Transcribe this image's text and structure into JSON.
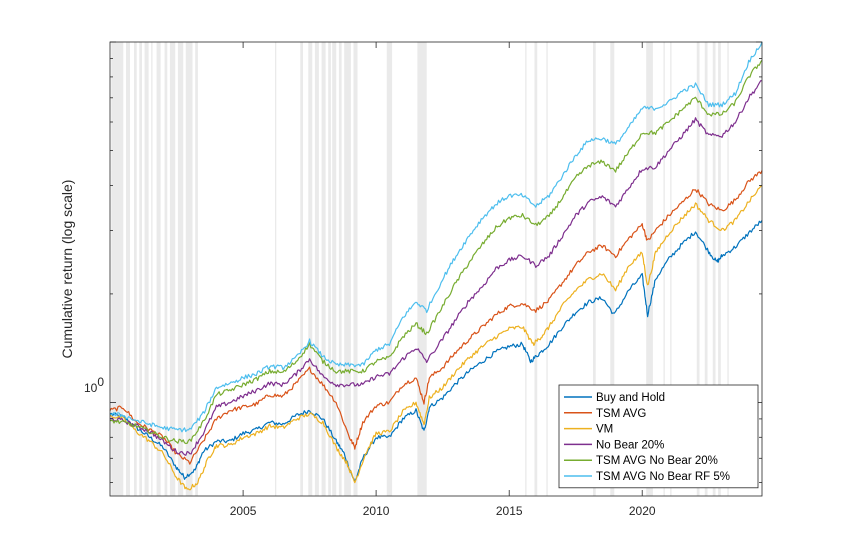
{
  "chart_data": {
    "type": "line",
    "title": "",
    "xlabel": "",
    "ylabel": "Cumulative return (log scale)",
    "y_scale": "log",
    "xlim": [
      2000.0,
      2024.5
    ],
    "ylim": [
      0.55,
      10.0
    ],
    "x_ticks": [
      2005,
      2010,
      2015,
      2020
    ],
    "y_tick_label": {
      "base": "10",
      "exponent": "0"
    },
    "grid": false,
    "legend_position": "bottom-right",
    "shaded_periods_color": "#d9d9d9",
    "shaded_periods": [
      [
        2000.05,
        2000.5
      ],
      [
        2000.6,
        2000.75
      ],
      [
        2000.9,
        2001.0
      ],
      [
        2001.1,
        2001.2
      ],
      [
        2001.3,
        2001.45
      ],
      [
        2001.55,
        2001.6
      ],
      [
        2001.75,
        2001.9
      ],
      [
        2002.05,
        2002.15
      ],
      [
        2002.25,
        2002.45
      ],
      [
        2002.55,
        2002.75
      ],
      [
        2002.85,
        2003.1
      ],
      [
        2003.2,
        2003.3
      ],
      [
        2006.2,
        2006.25
      ],
      [
        2007.15,
        2007.25
      ],
      [
        2007.45,
        2007.6
      ],
      [
        2007.7,
        2007.85
      ],
      [
        2007.95,
        2008.1
      ],
      [
        2008.2,
        2008.3
      ],
      [
        2008.35,
        2008.5
      ],
      [
        2008.6,
        2008.7
      ],
      [
        2008.8,
        2009.05
      ],
      [
        2009.15,
        2009.3
      ],
      [
        2010.4,
        2010.6
      ],
      [
        2011.55,
        2011.9
      ],
      [
        2015.6,
        2015.65
      ],
      [
        2015.95,
        2016.05
      ],
      [
        2016.4,
        2016.45
      ],
      [
        2018.15,
        2018.25
      ],
      [
        2018.8,
        2018.95
      ],
      [
        2020.15,
        2020.4
      ],
      [
        2020.8,
        2020.85
      ],
      [
        2021.05,
        2021.1
      ],
      [
        2022.05,
        2022.15
      ],
      [
        2022.35,
        2022.45
      ],
      [
        2022.65,
        2022.75
      ],
      [
        2022.85,
        2022.95
      ],
      [
        2023.2,
        2023.25
      ]
    ],
    "series": [
      {
        "name": "Buy and Hold",
        "color": "#0072BD",
        "x": [
          2000.0,
          2000.5,
          2001.0,
          2001.5,
          2002.0,
          2002.5,
          2002.8,
          2003.2,
          2003.5,
          2004.0,
          2004.5,
          2005.0,
          2005.5,
          2006.0,
          2006.5,
          2007.0,
          2007.5,
          2008.0,
          2008.5,
          2008.8,
          2009.2,
          2009.5,
          2010.0,
          2010.5,
          2011.0,
          2011.5,
          2011.8,
          2012.0,
          2012.5,
          2013.0,
          2013.5,
          2014.0,
          2014.5,
          2015.0,
          2015.5,
          2015.8,
          2016.1,
          2016.5,
          2017.0,
          2017.5,
          2018.0,
          2018.5,
          2018.95,
          2019.5,
          2020.0,
          2020.2,
          2020.5,
          2021.0,
          2021.5,
          2022.0,
          2022.5,
          2022.8,
          2023.0,
          2023.5,
          2024.0,
          2024.5
        ],
        "y": [
          0.93,
          0.91,
          0.85,
          0.8,
          0.75,
          0.66,
          0.62,
          0.65,
          0.73,
          0.78,
          0.78,
          0.82,
          0.84,
          0.88,
          0.87,
          0.92,
          0.95,
          0.9,
          0.78,
          0.72,
          0.6,
          0.7,
          0.8,
          0.8,
          0.9,
          0.95,
          0.83,
          0.97,
          1.03,
          1.13,
          1.22,
          1.3,
          1.38,
          1.43,
          1.45,
          1.3,
          1.36,
          1.45,
          1.62,
          1.78,
          1.9,
          1.95,
          1.75,
          2.05,
          2.25,
          1.75,
          2.2,
          2.5,
          2.75,
          2.98,
          2.62,
          2.45,
          2.55,
          2.7,
          2.95,
          3.2
        ]
      },
      {
        "name": "TSM AVG",
        "color": "#D95319",
        "x": [
          2000.0,
          2000.5,
          2001.0,
          2001.5,
          2002.0,
          2002.5,
          2003.0,
          2003.5,
          2004.0,
          2004.5,
          2005.0,
          2005.5,
          2006.0,
          2006.5,
          2007.0,
          2007.5,
          2008.0,
          2008.5,
          2009.0,
          2009.2,
          2009.5,
          2010.0,
          2010.5,
          2011.0,
          2011.5,
          2011.8,
          2012.0,
          2012.5,
          2013.0,
          2013.5,
          2014.0,
          2014.5,
          2015.0,
          2015.5,
          2016.0,
          2016.5,
          2017.0,
          2017.5,
          2018.0,
          2018.5,
          2019.0,
          2019.5,
          2020.0,
          2020.2,
          2020.5,
          2021.0,
          2021.5,
          2022.0,
          2022.5,
          2023.0,
          2023.5,
          2024.0,
          2024.5
        ],
        "y": [
          0.95,
          0.97,
          0.88,
          0.84,
          0.8,
          0.72,
          0.68,
          0.78,
          0.9,
          0.95,
          0.97,
          0.99,
          1.05,
          1.04,
          1.13,
          1.24,
          1.12,
          1.0,
          0.8,
          0.75,
          0.88,
          0.98,
          1.0,
          1.12,
          1.17,
          1.0,
          1.17,
          1.25,
          1.38,
          1.5,
          1.62,
          1.75,
          1.85,
          1.88,
          1.8,
          1.92,
          2.15,
          2.4,
          2.62,
          2.72,
          2.55,
          2.85,
          3.12,
          2.8,
          3.0,
          3.3,
          3.58,
          3.92,
          3.55,
          3.4,
          3.65,
          4.1,
          4.4
        ]
      },
      {
        "name": "VM",
        "color": "#EDB120",
        "x": [
          2000.0,
          2000.5,
          2001.0,
          2001.5,
          2002.0,
          2002.5,
          2002.9,
          2003.3,
          2003.7,
          2004.0,
          2004.5,
          2005.0,
          2005.5,
          2006.0,
          2006.5,
          2007.0,
          2007.5,
          2008.0,
          2008.5,
          2008.9,
          2009.2,
          2009.6,
          2010.0,
          2010.5,
          2011.0,
          2011.5,
          2011.8,
          2012.0,
          2012.5,
          2013.0,
          2013.5,
          2014.0,
          2014.5,
          2015.0,
          2015.5,
          2015.9,
          2016.2,
          2016.5,
          2017.0,
          2017.5,
          2018.0,
          2018.5,
          2019.0,
          2019.5,
          2020.0,
          2020.2,
          2020.5,
          2021.0,
          2021.5,
          2022.0,
          2022.5,
          2023.0,
          2023.5,
          2024.0,
          2024.5
        ],
        "y": [
          0.92,
          0.9,
          0.83,
          0.78,
          0.72,
          0.62,
          0.57,
          0.6,
          0.7,
          0.76,
          0.76,
          0.8,
          0.82,
          0.86,
          0.85,
          0.9,
          0.93,
          0.88,
          0.75,
          0.68,
          0.6,
          0.72,
          0.82,
          0.83,
          0.94,
          1.0,
          0.87,
          1.03,
          1.1,
          1.22,
          1.33,
          1.43,
          1.52,
          1.6,
          1.62,
          1.45,
          1.52,
          1.62,
          1.85,
          2.05,
          2.2,
          2.28,
          2.05,
          2.4,
          2.6,
          2.1,
          2.6,
          2.95,
          3.25,
          3.55,
          3.2,
          3.0,
          3.2,
          3.6,
          4.0
        ]
      },
      {
        "name": "No Bear 20%",
        "color": "#7E2F8E",
        "x": [
          2000.0,
          2000.5,
          2001.0,
          2001.5,
          2002.0,
          2002.5,
          2003.0,
          2003.5,
          2004.0,
          2004.5,
          2005.0,
          2005.5,
          2006.0,
          2006.5,
          2007.0,
          2007.5,
          2008.0,
          2008.5,
          2009.0,
          2009.5,
          2010.0,
          2010.5,
          2011.0,
          2011.5,
          2011.9,
          2012.5,
          2013.0,
          2013.5,
          2014.0,
          2014.5,
          2015.0,
          2015.5,
          2016.0,
          2016.5,
          2017.0,
          2017.5,
          2018.0,
          2018.5,
          2019.0,
          2019.5,
          2020.0,
          2020.5,
          2021.0,
          2021.5,
          2022.0,
          2022.5,
          2023.0,
          2023.5,
          2024.0,
          2024.5
        ],
        "y": [
          0.9,
          0.89,
          0.86,
          0.83,
          0.78,
          0.73,
          0.72,
          0.82,
          0.97,
          1.0,
          1.04,
          1.08,
          1.13,
          1.12,
          1.2,
          1.32,
          1.18,
          1.12,
          1.12,
          1.12,
          1.18,
          1.2,
          1.32,
          1.42,
          1.3,
          1.5,
          1.7,
          1.92,
          2.1,
          2.35,
          2.48,
          2.55,
          2.4,
          2.55,
          2.9,
          3.3,
          3.6,
          3.72,
          3.5,
          3.95,
          4.45,
          4.5,
          5.0,
          5.5,
          6.1,
          5.5,
          5.5,
          6.0,
          7.0,
          7.8
        ]
      },
      {
        "name": "TSM AVG No Bear 20%",
        "color": "#77AC30",
        "x": [
          2000.0,
          2000.5,
          2001.0,
          2001.5,
          2002.0,
          2002.5,
          2003.0,
          2003.5,
          2004.0,
          2004.5,
          2005.0,
          2005.5,
          2006.0,
          2006.5,
          2007.0,
          2007.5,
          2008.0,
          2008.5,
          2009.0,
          2009.5,
          2010.0,
          2010.5,
          2011.0,
          2011.5,
          2011.9,
          2012.5,
          2013.0,
          2013.5,
          2014.0,
          2014.5,
          2015.0,
          2015.5,
          2016.0,
          2016.5,
          2017.0,
          2017.5,
          2018.0,
          2018.5,
          2019.0,
          2019.5,
          2020.0,
          2020.5,
          2021.0,
          2021.5,
          2022.0,
          2022.5,
          2023.0,
          2023.5,
          2024.0,
          2024.5
        ],
        "y": [
          0.89,
          0.88,
          0.86,
          0.83,
          0.8,
          0.78,
          0.78,
          0.88,
          1.05,
          1.08,
          1.12,
          1.16,
          1.22,
          1.21,
          1.3,
          1.45,
          1.3,
          1.22,
          1.22,
          1.22,
          1.3,
          1.33,
          1.52,
          1.65,
          1.55,
          1.85,
          2.15,
          2.45,
          2.75,
          3.05,
          3.25,
          3.3,
          3.1,
          3.28,
          3.7,
          4.2,
          4.55,
          4.65,
          4.4,
          4.95,
          5.6,
          5.6,
          6.0,
          6.5,
          7.0,
          6.3,
          6.3,
          6.8,
          8.0,
          8.9
        ]
      },
      {
        "name": "TSM AVG No Bear RF 5%",
        "color": "#4DBEEE",
        "x": [
          2000.0,
          2000.5,
          2001.0,
          2001.5,
          2002.0,
          2002.5,
          2003.0,
          2003.5,
          2004.0,
          2004.5,
          2005.0,
          2005.5,
          2006.0,
          2006.5,
          2007.0,
          2007.5,
          2008.0,
          2008.5,
          2009.0,
          2009.5,
          2010.0,
          2010.5,
          2011.0,
          2011.5,
          2011.9,
          2012.5,
          2013.0,
          2013.5,
          2014.0,
          2014.5,
          2015.0,
          2015.5,
          2016.0,
          2016.5,
          2017.0,
          2017.5,
          2018.0,
          2018.5,
          2019.0,
          2019.5,
          2020.0,
          2020.5,
          2021.0,
          2021.5,
          2022.0,
          2022.5,
          2023.0,
          2023.5,
          2024.0,
          2024.5
        ],
        "y": [
          0.93,
          0.92,
          0.89,
          0.87,
          0.85,
          0.84,
          0.84,
          0.93,
          1.1,
          1.13,
          1.17,
          1.2,
          1.26,
          1.25,
          1.33,
          1.48,
          1.34,
          1.27,
          1.27,
          1.27,
          1.4,
          1.45,
          1.72,
          1.9,
          1.8,
          2.2,
          2.55,
          2.9,
          3.25,
          3.55,
          3.75,
          3.75,
          3.5,
          3.75,
          4.25,
          4.85,
          5.35,
          5.4,
          5.2,
          5.8,
          6.55,
          6.55,
          6.8,
          7.3,
          7.6,
          6.7,
          6.7,
          7.2,
          8.8,
          10.0
        ]
      }
    ]
  }
}
